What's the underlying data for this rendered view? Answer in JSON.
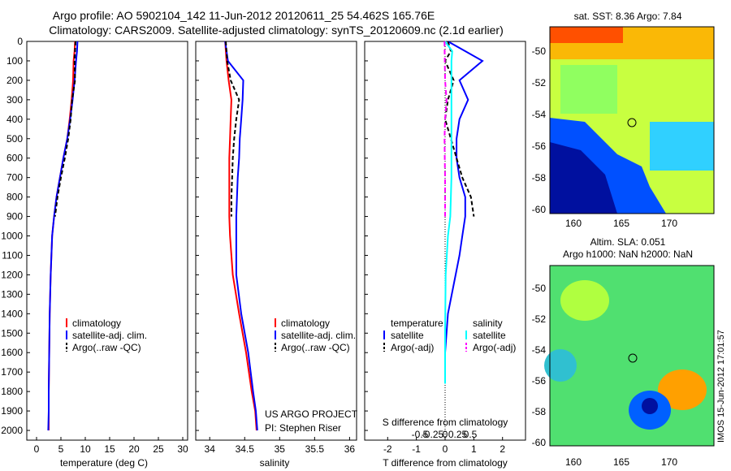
{
  "header": {
    "line1": "Argo profile: AO 5902104_142 11-Jun-2012 20120611_25 54.462S 165.76E",
    "line2": "Climatology: CARS2009. Satellite-adjusted climatology: synTS_20120609.nc (2.1d earlier)"
  },
  "colors": {
    "climatology": "#ff0000",
    "satellite": "#0000ff",
    "argo": "#000000",
    "sal_sat": "#00ffff",
    "sal_argo": "#ff00ff"
  },
  "depth_axis": {
    "ticks": [
      "0",
      "100",
      "200",
      "300",
      "400",
      "500",
      "600",
      "700",
      "800",
      "900",
      "1000",
      "1100",
      "1200",
      "1300",
      "1400",
      "1500",
      "1600",
      "1700",
      "1800",
      "1900",
      "2000"
    ]
  },
  "panel_temp": {
    "xlabel": "temperature (deg C)",
    "xticks": [
      "0",
      "5",
      "10",
      "15",
      "20",
      "25",
      "30"
    ],
    "legend": [
      "climatology",
      "satellite-adj. clim.",
      "Argo(..raw -QC)"
    ]
  },
  "panel_sal": {
    "xlabel": "salinity",
    "xticks": [
      "34",
      "34.5",
      "35",
      "35.5",
      "36"
    ],
    "legend": [
      "climatology",
      "satellite-adj. clim.",
      "Argo(..raw -QC)"
    ],
    "credit1": "US ARGO PROJECT",
    "credit2": "PI: Stephen Riser"
  },
  "panel_diff": {
    "xlabel_bottom": "T difference from climatology",
    "xlabel_top": "S difference from climatology",
    "xticks_T": [
      "-2",
      "-1",
      "0",
      "1",
      "2"
    ],
    "xticks_S": [
      "-0.5",
      "-0.25",
      "0",
      "0.25",
      "0.5"
    ],
    "legend_temp_title": "temperature",
    "legend_sal_title": "salinity",
    "legend_temp": [
      "satellite",
      "Argo(-adj)"
    ],
    "legend_sal": [
      "satellite",
      "Argo(-adj)"
    ]
  },
  "map_sst": {
    "title": "sat. SST: 8.36 Argo: 7.84",
    "yticks": [
      "-50",
      "-52",
      "-54",
      "-56",
      "-58",
      "-60"
    ],
    "xticks": [
      "160",
      "165",
      "170"
    ]
  },
  "map_sla": {
    "title1": "Altim. SLA: 0.051",
    "title2": "Argo h1000: NaN h2000: NaN",
    "yticks": [
      "-50",
      "-52",
      "-54",
      "-56",
      "-58",
      "-60"
    ],
    "xticks": [
      "160",
      "165",
      "170"
    ]
  },
  "side_stamp": "IMOS 15-Jun-2012 17:01:57",
  "chart_data": [
    {
      "type": "line",
      "title": "",
      "xlabel": "temperature (deg C)",
      "ylabel": "",
      "xlim": [
        -2,
        31
      ],
      "ylim": [
        2050,
        0
      ],
      "series": [
        {
          "name": "climatology",
          "x": [
            7.9,
            7.8,
            7.6,
            7.5,
            7.2,
            6.8,
            6.3,
            5.5,
            4.8,
            4.1,
            3.6,
            3.2,
            2.9,
            2.7,
            2.6,
            2.5,
            2.5,
            2.5
          ],
          "y": [
            0,
            50,
            100,
            200,
            300,
            400,
            500,
            600,
            700,
            800,
            900,
            1000,
            1200,
            1400,
            1600,
            1800,
            1900,
            2000
          ]
        },
        {
          "name": "satellite-adj. clim.",
          "x": [
            8.4,
            8.3,
            8.1,
            7.8,
            7.4,
            6.9,
            6.3,
            5.5,
            4.8,
            4.1,
            3.6,
            3.2,
            2.9,
            2.7,
            2.6,
            2.5,
            2.5,
            2.4
          ],
          "y": [
            0,
            50,
            100,
            200,
            300,
            400,
            500,
            600,
            700,
            800,
            900,
            1000,
            1200,
            1400,
            1600,
            1800,
            1900,
            2000
          ]
        },
        {
          "name": "Argo(..raw -QC)",
          "x": [
            8.0,
            7.9,
            7.8,
            7.9,
            7.3,
            7.0,
            6.5,
            5.8,
            5.0,
            4.3,
            3.8
          ],
          "y": [
            0,
            50,
            100,
            200,
            300,
            400,
            500,
            600,
            700,
            800,
            900
          ]
        }
      ]
    },
    {
      "type": "line",
      "title": "",
      "xlabel": "salinity",
      "ylabel": "",
      "xlim": [
        33.8,
        36.1
      ],
      "ylim": [
        2050,
        0
      ],
      "series": [
        {
          "name": "climatology",
          "x": [
            34.22,
            34.24,
            34.27,
            34.31,
            34.3,
            34.29,
            34.28,
            34.28,
            34.28,
            34.28,
            34.29,
            34.33,
            34.42,
            34.52,
            34.6,
            34.65,
            34.67
          ],
          "y": [
            0,
            100,
            200,
            300,
            400,
            500,
            600,
            700,
            800,
            900,
            1000,
            1200,
            1400,
            1600,
            1800,
            1900,
            2000
          ]
        },
        {
          "name": "satellite-adj. clim.",
          "x": [
            34.22,
            34.26,
            34.48,
            34.47,
            34.45,
            34.43,
            34.42,
            34.4,
            34.39,
            34.38,
            34.38,
            34.38,
            34.45,
            34.55,
            34.62,
            34.66,
            34.68
          ],
          "y": [
            0,
            100,
            200,
            300,
            400,
            500,
            600,
            700,
            800,
            900,
            1000,
            1200,
            1400,
            1600,
            1800,
            1900,
            2000
          ]
        },
        {
          "name": "Argo(..raw -QC)",
          "x": [
            34.23,
            34.25,
            34.3,
            34.42,
            34.38,
            34.35,
            34.33,
            34.32,
            34.31,
            34.31
          ],
          "y": [
            0,
            100,
            200,
            300,
            400,
            500,
            600,
            700,
            800,
            900
          ]
        }
      ]
    },
    {
      "type": "line",
      "title": "",
      "xlabel": "T difference from climatology",
      "ylabel": "",
      "xlim": [
        -2.8,
        2.8
      ],
      "ylim": [
        2050,
        0
      ],
      "series": [
        {
          "name": "temperature satellite",
          "x": [
            0.1,
            0.7,
            1.3,
            0.5,
            0.8,
            0.5,
            0.4,
            0.4,
            0.5,
            0.7,
            0.7,
            0.6,
            0.5,
            0.1,
            0.0,
            0.0
          ],
          "y": [
            0,
            50,
            100,
            200,
            300,
            400,
            500,
            600,
            700,
            800,
            900,
            1000,
            1100,
            1400,
            1600,
            1760
          ]
        },
        {
          "name": "temperature Argo(-adj)",
          "x": [
            0.1,
            0.2,
            0.0,
            0.3,
            0.1,
            0.0,
            0.2,
            0.4,
            0.6,
            0.9,
            1.0
          ],
          "y": [
            0,
            50,
            100,
            200,
            300,
            400,
            500,
            600,
            700,
            800,
            900
          ]
        },
        {
          "name": "salinity satellite",
          "x": [
            -0.0,
            0.25,
            0.22,
            0.22,
            0.22,
            0.22,
            0.22,
            0.22,
            0.22,
            0.2,
            0.18,
            0.1,
            0.02,
            0.0,
            0.0
          ],
          "y": [
            0,
            50,
            100,
            200,
            300,
            400,
            500,
            600,
            700,
            800,
            900,
            1000,
            1200,
            1500,
            1760
          ]
        },
        {
          "name": "salinity Argo(-adj)",
          "x": [
            -0.02,
            -0.01,
            0.0,
            0.05,
            0.0,
            -0.02,
            -0.01,
            0.0,
            0.0,
            0.0
          ],
          "y": [
            0,
            100,
            200,
            300,
            400,
            500,
            600,
            700,
            800,
            900
          ]
        }
      ]
    }
  ]
}
